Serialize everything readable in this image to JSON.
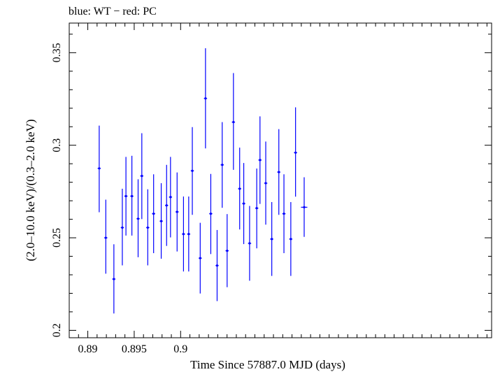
{
  "chart_data": {
    "type": "scatter",
    "title": "blue: WT − red: PC",
    "xlabel": "Time Since 57887.0 MJD (days)",
    "ylabel": "(2.0–10.0 keV)/(0.3–2.0 keV)",
    "xlim": [
      0.888,
      0.9335
    ],
    "ylim": [
      0.196,
      0.366
    ],
    "x_ticks": [
      0.89,
      0.895,
      0.9
    ],
    "x_tick_labels": [
      "0.89",
      "0.895",
      "0.9"
    ],
    "y_ticks": [
      0.2,
      0.25,
      0.3,
      0.35
    ],
    "y_tick_labels": [
      "0.2",
      "0.25",
      "0.3",
      "0.35"
    ],
    "grid": false,
    "series": [
      {
        "color": "#0000ff",
        "x_err": 0.00017,
        "points": [
          {
            "x": 0.89123,
            "y": 0.2875,
            "y_lo": 0.2638,
            "y_hi": 0.3106
          },
          {
            "x": 0.89194,
            "y": 0.25,
            "y_lo": 0.2306,
            "y_hi": 0.2706
          },
          {
            "x": 0.89281,
            "y": 0.2277,
            "y_lo": 0.2091,
            "y_hi": 0.2465
          },
          {
            "x": 0.89372,
            "y": 0.2555,
            "y_lo": 0.2351,
            "y_hi": 0.2765
          },
          {
            "x": 0.89411,
            "y": 0.2725,
            "y_lo": 0.2512,
            "y_hi": 0.2937
          },
          {
            "x": 0.89475,
            "y": 0.2725,
            "y_lo": 0.2512,
            "y_hi": 0.2943
          },
          {
            "x": 0.89542,
            "y": 0.2603,
            "y_lo": 0.2395,
            "y_hi": 0.2816
          },
          {
            "x": 0.89582,
            "y": 0.2834,
            "y_lo": 0.2601,
            "y_hi": 0.3065
          },
          {
            "x": 0.89646,
            "y": 0.2555,
            "y_lo": 0.2351,
            "y_hi": 0.2762
          },
          {
            "x": 0.89709,
            "y": 0.263,
            "y_lo": 0.2417,
            "y_hi": 0.2843
          },
          {
            "x": 0.89791,
            "y": 0.259,
            "y_lo": 0.2387,
            "y_hi": 0.2795
          },
          {
            "x": 0.89849,
            "y": 0.2675,
            "y_lo": 0.2456,
            "y_hi": 0.2894
          },
          {
            "x": 0.89891,
            "y": 0.272,
            "y_lo": 0.2502,
            "y_hi": 0.2937
          },
          {
            "x": 0.89962,
            "y": 0.264,
            "y_lo": 0.2426,
            "y_hi": 0.2853
          },
          {
            "x": 0.90031,
            "y": 0.252,
            "y_lo": 0.2318,
            "y_hi": 0.2723
          },
          {
            "x": 0.90087,
            "y": 0.252,
            "y_lo": 0.2318,
            "y_hi": 0.2723
          },
          {
            "x": 0.90126,
            "y": 0.2862,
            "y_lo": 0.2624,
            "y_hi": 0.3098
          },
          {
            "x": 0.90211,
            "y": 0.239,
            "y_lo": 0.2199,
            "y_hi": 0.2581
          },
          {
            "x": 0.90268,
            "y": 0.3253,
            "y_lo": 0.2983,
            "y_hi": 0.3524
          },
          {
            "x": 0.90325,
            "y": 0.263,
            "y_lo": 0.2412,
            "y_hi": 0.2845
          },
          {
            "x": 0.90393,
            "y": 0.235,
            "y_lo": 0.2158,
            "y_hi": 0.2542
          },
          {
            "x": 0.90448,
            "y": 0.2894,
            "y_lo": 0.2662,
            "y_hi": 0.3125
          },
          {
            "x": 0.90501,
            "y": 0.243,
            "y_lo": 0.2233,
            "y_hi": 0.2628
          },
          {
            "x": 0.90569,
            "y": 0.3125,
            "y_lo": 0.2867,
            "y_hi": 0.339
          },
          {
            "x": 0.90636,
            "y": 0.2765,
            "y_lo": 0.2545,
            "y_hi": 0.2987
          },
          {
            "x": 0.9068,
            "y": 0.2685,
            "y_lo": 0.2466,
            "y_hi": 0.2904
          },
          {
            "x": 0.90743,
            "y": 0.247,
            "y_lo": 0.2268,
            "y_hi": 0.2672
          },
          {
            "x": 0.9082,
            "y": 0.266,
            "y_lo": 0.2443,
            "y_hi": 0.2874
          },
          {
            "x": 0.90855,
            "y": 0.292,
            "y_lo": 0.2683,
            "y_hi": 0.3156
          },
          {
            "x": 0.90917,
            "y": 0.2795,
            "y_lo": 0.2571,
            "y_hi": 0.302
          },
          {
            "x": 0.90982,
            "y": 0.2493,
            "y_lo": 0.2294,
            "y_hi": 0.2693
          },
          {
            "x": 0.91058,
            "y": 0.2855,
            "y_lo": 0.2624,
            "y_hi": 0.3087
          },
          {
            "x": 0.91113,
            "y": 0.263,
            "y_lo": 0.2417,
            "y_hi": 0.2843
          },
          {
            "x": 0.91187,
            "y": 0.2493,
            "y_lo": 0.2294,
            "y_hi": 0.2693
          },
          {
            "x": 0.91238,
            "y": 0.296,
            "y_lo": 0.2722,
            "y_hi": 0.3205
          },
          {
            "x": 0.91331,
            "y": 0.2665,
            "y_lo": 0.2505,
            "y_hi": 0.2827,
            "x_err": 0.00034
          }
        ]
      }
    ]
  }
}
